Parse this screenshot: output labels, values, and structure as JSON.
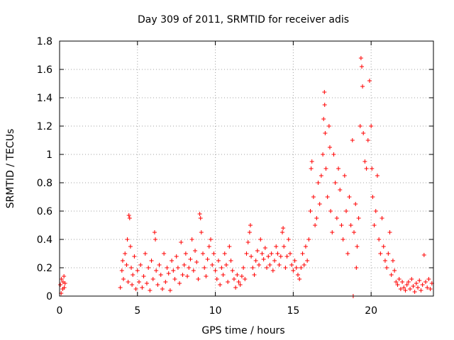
{
  "chart_data": {
    "type": "scatter",
    "title": "Day 309 of 2011, SRMTID for receiver adis",
    "xlabel": "GPS time / hours",
    "ylabel": "SRMTID / TECUs",
    "xlim": [
      0,
      24
    ],
    "ylim": [
      0,
      1.8
    ],
    "xticks": [
      0,
      5,
      10,
      15,
      20
    ],
    "yticks": [
      0,
      0.2,
      0.4,
      0.6,
      0.8,
      1,
      1.2,
      1.4,
      1.6,
      1.8
    ],
    "grid": true,
    "marker": "+",
    "color": "#ff0000",
    "series": [
      {
        "name": "SRMTID",
        "points": [
          [
            0.05,
            0.08
          ],
          [
            0.12,
            0.12
          ],
          [
            0.2,
            0.05
          ],
          [
            0.28,
            0.14
          ],
          [
            0.35,
            0.09
          ],
          [
            0.1,
            0.02
          ],
          [
            0.22,
            0.1
          ],
          [
            0.3,
            0.06
          ],
          [
            3.9,
            0.06
          ],
          [
            4.0,
            0.18
          ],
          [
            4.05,
            0.25
          ],
          [
            4.1,
            0.12
          ],
          [
            4.2,
            0.3
          ],
          [
            4.3,
            0.22
          ],
          [
            4.35,
            0.4
          ],
          [
            4.4,
            0.1
          ],
          [
            4.45,
            0.57
          ],
          [
            4.5,
            0.55
          ],
          [
            4.55,
            0.35
          ],
          [
            4.6,
            0.2
          ],
          [
            4.65,
            0.08
          ],
          [
            4.7,
            0.15
          ],
          [
            4.8,
            0.28
          ],
          [
            4.9,
            0.05
          ],
          [
            5.0,
            0.18
          ],
          [
            5.1,
            0.1
          ],
          [
            5.2,
            0.22
          ],
          [
            5.3,
            0.06
          ],
          [
            5.4,
            0.14
          ],
          [
            5.5,
            0.3
          ],
          [
            5.6,
            0.09
          ],
          [
            5.7,
            0.2
          ],
          [
            5.8,
            0.04
          ],
          [
            5.9,
            0.25
          ],
          [
            6.0,
            0.12
          ],
          [
            6.1,
            0.45
          ],
          [
            6.15,
            0.4
          ],
          [
            6.2,
            0.18
          ],
          [
            6.3,
            0.08
          ],
          [
            6.4,
            0.22
          ],
          [
            6.5,
            0.15
          ],
          [
            6.6,
            0.05
          ],
          [
            6.7,
            0.3
          ],
          [
            6.8,
            0.1
          ],
          [
            6.9,
            0.2
          ],
          [
            7.0,
            0.16
          ],
          [
            7.1,
            0.04
          ],
          [
            7.2,
            0.25
          ],
          [
            7.3,
            0.18
          ],
          [
            7.4,
            0.12
          ],
          [
            7.5,
            0.28
          ],
          [
            7.6,
            0.2
          ],
          [
            7.7,
            0.09
          ],
          [
            7.8,
            0.38
          ],
          [
            7.9,
            0.15
          ],
          [
            8.0,
            0.22
          ],
          [
            8.1,
            0.3
          ],
          [
            8.2,
            0.14
          ],
          [
            8.3,
            0.2
          ],
          [
            8.4,
            0.26
          ],
          [
            8.5,
            0.4
          ],
          [
            8.6,
            0.18
          ],
          [
            8.7,
            0.32
          ],
          [
            8.8,
            0.24
          ],
          [
            8.9,
            0.12
          ],
          [
            9.0,
            0.58
          ],
          [
            9.05,
            0.55
          ],
          [
            9.1,
            0.45
          ],
          [
            9.2,
            0.3
          ],
          [
            9.3,
            0.2
          ],
          [
            9.4,
            0.14
          ],
          [
            9.5,
            0.26
          ],
          [
            9.6,
            0.35
          ],
          [
            9.7,
            0.4
          ],
          [
            9.8,
            0.22
          ],
          [
            9.9,
            0.3
          ],
          [
            10.0,
            0.18
          ],
          [
            10.1,
            0.12
          ],
          [
            10.2,
            0.25
          ],
          [
            10.3,
            0.08
          ],
          [
            10.4,
            0.2
          ],
          [
            10.5,
            0.15
          ],
          [
            10.6,
            0.3
          ],
          [
            10.7,
            0.22
          ],
          [
            10.8,
            0.1
          ],
          [
            10.9,
            0.35
          ],
          [
            11.0,
            0.25
          ],
          [
            11.1,
            0.18
          ],
          [
            11.2,
            0.12
          ],
          [
            11.3,
            0.06
          ],
          [
            11.4,
            0.15
          ],
          [
            11.5,
            0.1
          ],
          [
            11.6,
            0.08
          ],
          [
            11.7,
            0.14
          ],
          [
            11.8,
            0.2
          ],
          [
            11.9,
            0.12
          ],
          [
            12.0,
            0.3
          ],
          [
            12.1,
            0.38
          ],
          [
            12.2,
            0.45
          ],
          [
            12.25,
            0.5
          ],
          [
            12.3,
            0.28
          ],
          [
            12.4,
            0.2
          ],
          [
            12.5,
            0.15
          ],
          [
            12.6,
            0.25
          ],
          [
            12.7,
            0.32
          ],
          [
            12.8,
            0.22
          ],
          [
            12.9,
            0.4
          ],
          [
            13.0,
            0.3
          ],
          [
            13.1,
            0.26
          ],
          [
            13.2,
            0.34
          ],
          [
            13.3,
            0.2
          ],
          [
            13.4,
            0.28
          ],
          [
            13.5,
            0.22
          ],
          [
            13.6,
            0.3
          ],
          [
            13.7,
            0.18
          ],
          [
            13.8,
            0.25
          ],
          [
            13.9,
            0.35
          ],
          [
            14.0,
            0.3
          ],
          [
            14.1,
            0.22
          ],
          [
            14.2,
            0.28
          ],
          [
            14.3,
            0.45
          ],
          [
            14.35,
            0.48
          ],
          [
            14.4,
            0.35
          ],
          [
            14.5,
            0.2
          ],
          [
            14.6,
            0.28
          ],
          [
            14.7,
            0.4
          ],
          [
            14.8,
            0.3
          ],
          [
            14.9,
            0.22
          ],
          [
            15.0,
            0.18
          ],
          [
            15.1,
            0.25
          ],
          [
            15.2,
            0.2
          ],
          [
            15.3,
            0.15
          ],
          [
            15.4,
            0.12
          ],
          [
            15.5,
            0.2
          ],
          [
            15.6,
            0.3
          ],
          [
            15.7,
            0.22
          ],
          [
            15.8,
            0.35
          ],
          [
            15.9,
            0.25
          ],
          [
            16.0,
            0.4
          ],
          [
            16.1,
            0.6
          ],
          [
            16.15,
            0.9
          ],
          [
            16.2,
            0.95
          ],
          [
            16.3,
            0.7
          ],
          [
            16.4,
            0.5
          ],
          [
            16.5,
            0.55
          ],
          [
            16.6,
            0.8
          ],
          [
            16.7,
            0.65
          ],
          [
            16.8,
            0.85
          ],
          [
            16.9,
            1.0
          ],
          [
            16.95,
            1.25
          ],
          [
            17.0,
            1.44
          ],
          [
            17.02,
            1.35
          ],
          [
            17.05,
            1.15
          ],
          [
            17.1,
            0.9
          ],
          [
            17.2,
            0.7
          ],
          [
            17.3,
            1.2
          ],
          [
            17.35,
            1.05
          ],
          [
            17.4,
            0.6
          ],
          [
            17.5,
            0.45
          ],
          [
            17.6,
            1.0
          ],
          [
            17.7,
            0.8
          ],
          [
            17.8,
            0.55
          ],
          [
            17.9,
            0.9
          ],
          [
            18.0,
            0.75
          ],
          [
            18.1,
            0.5
          ],
          [
            18.2,
            0.4
          ],
          [
            18.3,
            0.85
          ],
          [
            18.4,
            0.6
          ],
          [
            18.5,
            0.3
          ],
          [
            18.6,
            0.7
          ],
          [
            18.7,
            0.5
          ],
          [
            18.8,
            1.1
          ],
          [
            18.9,
            0.45
          ],
          [
            19.0,
            0.65
          ],
          [
            19.05,
            0.2
          ],
          [
            19.1,
            0.35
          ],
          [
            19.2,
            0.55
          ],
          [
            19.3,
            1.2
          ],
          [
            19.35,
            1.68
          ],
          [
            19.4,
            1.62
          ],
          [
            19.45,
            1.48
          ],
          [
            19.5,
            1.15
          ],
          [
            19.6,
            0.95
          ],
          [
            19.7,
            0.9
          ],
          [
            19.8,
            1.1
          ],
          [
            19.9,
            1.52
          ],
          [
            20.0,
            1.2
          ],
          [
            20.05,
            0.9
          ],
          [
            20.1,
            0.7
          ],
          [
            20.2,
            0.5
          ],
          [
            20.3,
            0.6
          ],
          [
            20.4,
            0.85
          ],
          [
            20.5,
            0.4
          ],
          [
            20.6,
            0.3
          ],
          [
            20.7,
            0.55
          ],
          [
            20.8,
            0.35
          ],
          [
            20.9,
            0.25
          ],
          [
            21.0,
            0.2
          ],
          [
            21.1,
            0.3
          ],
          [
            21.2,
            0.45
          ],
          [
            21.3,
            0.15
          ],
          [
            21.4,
            0.25
          ],
          [
            21.5,
            0.18
          ],
          [
            21.6,
            0.1
          ],
          [
            21.7,
            0.08
          ],
          [
            21.8,
            0.12
          ],
          [
            21.9,
            0.05
          ],
          [
            22.0,
            0.1
          ],
          [
            22.1,
            0.06
          ],
          [
            22.2,
            0.04
          ],
          [
            22.3,
            0.08
          ],
          [
            22.4,
            0.1
          ],
          [
            22.5,
            0.05
          ],
          [
            22.6,
            0.12
          ],
          [
            22.7,
            0.07
          ],
          [
            22.8,
            0.03
          ],
          [
            22.9,
            0.09
          ],
          [
            23.0,
            0.06
          ],
          [
            23.1,
            0.11
          ],
          [
            23.2,
            0.04
          ],
          [
            23.3,
            0.08
          ],
          [
            23.4,
            0.29
          ],
          [
            23.5,
            0.1
          ],
          [
            23.6,
            0.06
          ],
          [
            23.7,
            0.12
          ],
          [
            23.8,
            0.05
          ],
          [
            23.9,
            0.09
          ],
          [
            18.85,
            0.0
          ]
        ]
      }
    ]
  }
}
